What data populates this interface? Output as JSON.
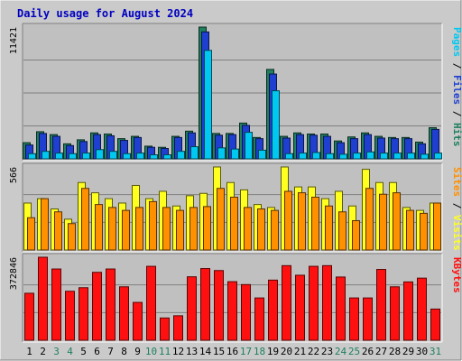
{
  "page_title": "Daily usage for August 2024",
  "colors": {
    "frame_bg": "#cacaca",
    "panel_bg": "#c0c0c0",
    "title": "#0000c0",
    "hits": "#1f7f5f",
    "files": "#1f3fd0",
    "pages": "#00c8f0",
    "visits": "#ffff20",
    "sites": "#ff9000",
    "kbytes": "#ff1010",
    "weekday": "#000000",
    "weekend": "#1f7f5f"
  },
  "chart_data": [
    {
      "type": "bar",
      "panel": "hits-files-pages",
      "y_max_label": "11421",
      "ylim": [
        0,
        11421
      ],
      "series_labels": [
        "Pages",
        "Files",
        "Hits"
      ],
      "categories": [
        "1",
        "2",
        "3",
        "4",
        "5",
        "6",
        "7",
        "8",
        "9",
        "10",
        "11",
        "12",
        "13",
        "14",
        "15",
        "16",
        "17",
        "18",
        "19",
        "20",
        "21",
        "22",
        "23",
        "24",
        "25",
        "26",
        "27",
        "28",
        "29",
        "30",
        "31"
      ],
      "weekend_days": [
        "3",
        "4",
        "10",
        "11",
        "17",
        "18",
        "24",
        "25",
        "31"
      ],
      "series": [
        {
          "name": "Hits",
          "values": [
            1400,
            2350,
            2100,
            1300,
            1650,
            2250,
            2150,
            1750,
            1950,
            1100,
            1000,
            1950,
            2400,
            11421,
            2200,
            2200,
            3100,
            1850,
            7750,
            1950,
            2250,
            2150,
            2150,
            1550,
            1900,
            2250,
            1950,
            1850,
            1850,
            1450,
            2700
          ]
        },
        {
          "name": "Files",
          "values": [
            1200,
            2200,
            1950,
            1150,
            1500,
            2100,
            2000,
            1600,
            1850,
            1000,
            900,
            1850,
            2250,
            11000,
            2050,
            2100,
            2900,
            1750,
            7350,
            1800,
            2100,
            2050,
            1950,
            1400,
            1750,
            2100,
            1800,
            1750,
            1750,
            1300,
            2550
          ]
        },
        {
          "name": "Pages",
          "values": [
            450,
            650,
            500,
            450,
            500,
            800,
            650,
            450,
            500,
            350,
            350,
            650,
            1050,
            9400,
            950,
            850,
            2300,
            750,
            5900,
            450,
            500,
            550,
            450,
            400,
            500,
            600,
            500,
            500,
            500,
            400,
            500
          ]
        }
      ]
    },
    {
      "type": "bar",
      "panel": "visits-sites",
      "y_max_label": "566",
      "ylim": [
        0,
        566
      ],
      "series_labels": [
        "Sites",
        "Visits"
      ],
      "categories": [
        "1",
        "2",
        "3",
        "4",
        "5",
        "6",
        "7",
        "8",
        "9",
        "10",
        "11",
        "12",
        "13",
        "14",
        "15",
        "16",
        "17",
        "18",
        "19",
        "20",
        "21",
        "22",
        "23",
        "24",
        "25",
        "26",
        "27",
        "28",
        "29",
        "30",
        "31"
      ],
      "series": [
        {
          "name": "Visits",
          "values": [
            320,
            350,
            280,
            210,
            460,
            390,
            350,
            320,
            440,
            350,
            400,
            300,
            370,
            386,
            566,
            460,
            410,
            310,
            290,
            566,
            430,
            430,
            350,
            400,
            300,
            550,
            460,
            460,
            290,
            270,
            320
          ]
        },
        {
          "name": "Sites",
          "values": [
            220,
            350,
            260,
            180,
            420,
            310,
            290,
            270,
            290,
            330,
            290,
            270,
            290,
            296,
            420,
            360,
            290,
            280,
            270,
            400,
            390,
            360,
            300,
            260,
            200,
            420,
            380,
            390,
            270,
            250,
            320
          ]
        }
      ]
    },
    {
      "type": "bar",
      "panel": "kbytes",
      "y_max_label": "372846",
      "ylim": [
        0,
        372846
      ],
      "series_labels": [
        "KBytes"
      ],
      "categories": [
        "1",
        "2",
        "3",
        "4",
        "5",
        "6",
        "7",
        "8",
        "9",
        "10",
        "11",
        "12",
        "13",
        "14",
        "15",
        "16",
        "17",
        "18",
        "19",
        "20",
        "21",
        "22",
        "23",
        "24",
        "25",
        "26",
        "27",
        "28",
        "29",
        "30",
        "31"
      ],
      "series": [
        {
          "name": "KBytes",
          "values": [
            211000,
            372846,
            320000,
            220000,
            236000,
            305000,
            320000,
            240000,
            170000,
            332000,
            100000,
            110000,
            285000,
            322000,
            313000,
            263000,
            250000,
            190000,
            270000,
            335000,
            292000,
            332000,
            335000,
            284000,
            190000,
            190000,
            318000,
            240000,
            262000,
            279000,
            140000
          ]
        }
      ]
    }
  ]
}
